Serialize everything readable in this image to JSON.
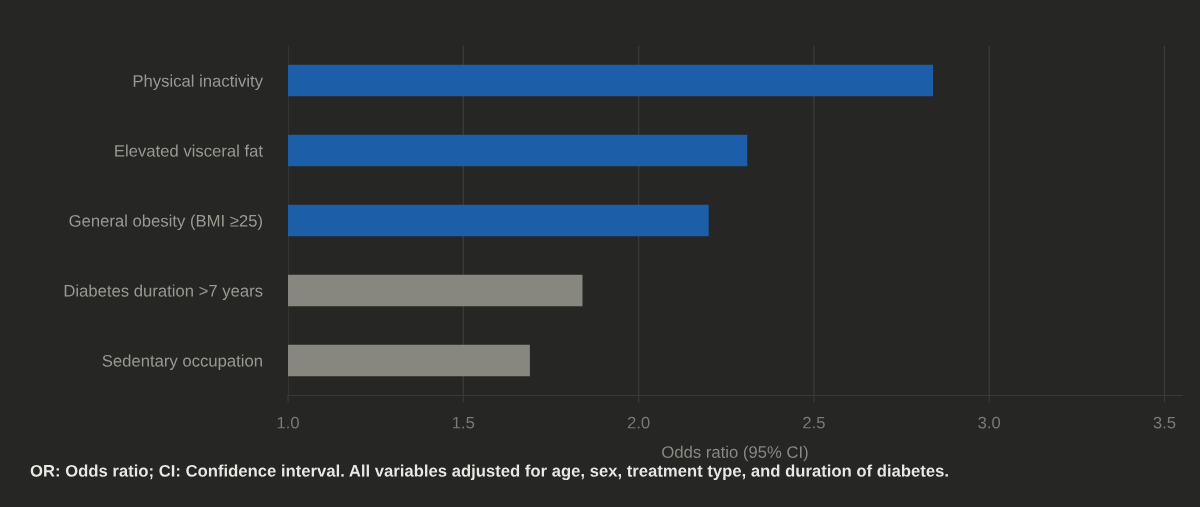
{
  "chart_data": {
    "type": "bar",
    "orientation": "horizontal",
    "categories": [
      "Physical inactivity",
      "Elevated visceral fat",
      "General obesity (BMI ≥25)",
      "Diabetes duration >7 years",
      "Sedentary occupation"
    ],
    "values": [
      2.84,
      2.31,
      2.2,
      1.84,
      1.69
    ],
    "colors": [
      "#1c5ea8",
      "#1c5ea8",
      "#1c5ea8",
      "#87867f",
      "#87867f"
    ],
    "xlim": [
      1.0,
      3.55
    ],
    "xticks": [
      {
        "value": 1.0,
        "label": "1.0"
      },
      {
        "value": 1.5,
        "label": "1.5"
      },
      {
        "value": 2.0,
        "label": "2.0"
      },
      {
        "value": 2.5,
        "label": "2.5"
      },
      {
        "value": 3.0,
        "label": "3.0"
      },
      {
        "value": 3.5,
        "label": "3.5"
      }
    ],
    "xlabel": "Odds ratio (95% CI)",
    "grid": "x",
    "annotations": [
      "OR: Odds ratio; CI: Confidence interval. All variables adjusted for age, sex, treatment type, and duration of diabetes."
    ]
  }
}
